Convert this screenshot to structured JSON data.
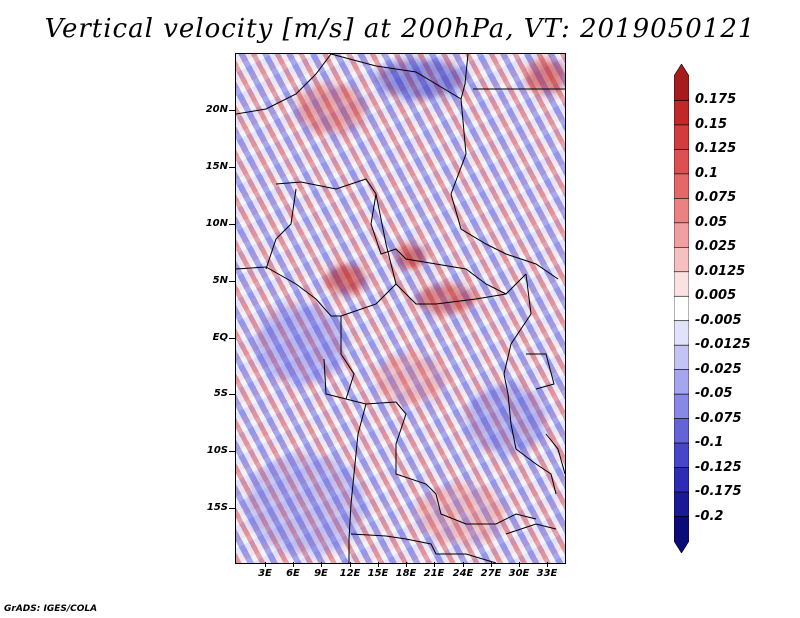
{
  "title": "Vertical velocity [m/s] at 200hPa, VT: 2019050121",
  "map": {
    "lat_labels": [
      "20N",
      "15N",
      "10N",
      "5N",
      "EQ",
      "5S",
      "10S",
      "15S"
    ],
    "lon_labels": [
      "3E",
      "6E",
      "9E",
      "12E",
      "15E",
      "18E",
      "21E",
      "24E",
      "27E",
      "30E",
      "33E"
    ]
  },
  "colorbar": {
    "labels": [
      "0.175",
      "0.15",
      "0.125",
      "0.1",
      "0.075",
      "0.05",
      "0.025",
      "0.0125",
      "0.005",
      "-0.005",
      "-0.0125",
      "-0.025",
      "-0.05",
      "-0.075",
      "-0.1",
      "-0.125",
      "-0.175",
      "-0.2"
    ],
    "colors": [
      "#a51c1c",
      "#c12828",
      "#d23c3c",
      "#dd5050",
      "#e46868",
      "#ea8282",
      "#f0a0a0",
      "#f6c0c0",
      "#fbe2e2",
      "#ffffff",
      "#e2e2fa",
      "#c4c4f4",
      "#a6a6ee",
      "#8888e6",
      "#6464d8",
      "#4646c8",
      "#2c2cb4",
      "#1a1a96",
      "#0c0c78"
    ]
  },
  "credit": "GrADS: IGES/COLA"
}
